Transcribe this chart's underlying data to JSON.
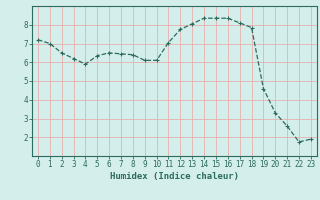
{
  "x": [
    0,
    1,
    2,
    3,
    4,
    5,
    6,
    7,
    8,
    9,
    10,
    11,
    12,
    13,
    14,
    15,
    16,
    17,
    18,
    19,
    20,
    21,
    22,
    23
  ],
  "y": [
    7.2,
    7.0,
    6.5,
    6.2,
    5.9,
    6.35,
    6.5,
    6.45,
    6.4,
    6.1,
    6.1,
    7.05,
    7.75,
    8.05,
    8.35,
    8.35,
    8.35,
    8.1,
    7.85,
    4.6,
    3.3,
    2.6,
    1.75,
    1.9
  ],
  "line_color": "#2d6b5e",
  "marker": "+",
  "marker_size": 3,
  "background_color": "#d4eeeb",
  "grid_color": "#e8b0b0",
  "xlabel": "Humidex (Indice chaleur)",
  "ylim": [
    1,
    9
  ],
  "xlim": [
    -0.5,
    23.5
  ],
  "yticks": [
    2,
    3,
    4,
    5,
    6,
    7,
    8
  ],
  "xticks": [
    0,
    1,
    2,
    3,
    4,
    5,
    6,
    7,
    8,
    9,
    10,
    11,
    12,
    13,
    14,
    15,
    16,
    17,
    18,
    19,
    20,
    21,
    22,
    23
  ],
  "tick_color": "#2d6b5e",
  "label_fontsize": 6.5,
  "tick_fontsize": 5.5,
  "spine_color": "#2d6b5e",
  "line_width": 0.9
}
